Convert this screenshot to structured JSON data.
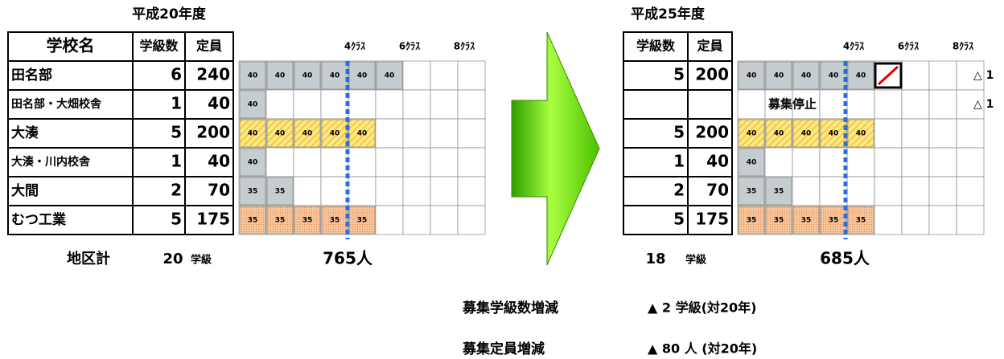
{
  "left": {
    "title": "平成20年度",
    "headers": [
      "学校名",
      "学級数",
      "定員"
    ],
    "class_labels": [
      "4ｸﾗｽ",
      "6ｸﾗｽ",
      "8ｸﾗｽ"
    ],
    "rows": [
      {
        "name": "田名部",
        "classes": 6,
        "capacity": 240,
        "cells": [
          40,
          40,
          40,
          40,
          40,
          40
        ],
        "color": "gray"
      },
      {
        "name": "田名部・大畑校舎",
        "classes": 1,
        "capacity": 40,
        "cells": [
          40
        ],
        "color": "gray"
      },
      {
        "name": "大湊",
        "classes": 5,
        "capacity": 200,
        "cells": [
          40,
          40,
          40,
          40,
          40
        ],
        "color": "yellow"
      },
      {
        "name": "大湊・川内校舎",
        "classes": 1,
        "capacity": 40,
        "cells": [
          40
        ],
        "color": "gray"
      },
      {
        "name": "大間",
        "classes": 2,
        "capacity": 70,
        "cells": [
          35,
          35
        ],
        "color": "gray"
      },
      {
        "name": "むつ工業",
        "classes": 5,
        "capacity": 175,
        "cells": [
          35,
          35,
          35,
          35,
          35
        ],
        "color": "orange"
      }
    ],
    "total": {
      "label": "地区計",
      "classes": 20,
      "unit": "学級",
      "capacity": "765人"
    }
  },
  "right": {
    "title": "平成25年度",
    "headers": [
      "学級数",
      "定員"
    ],
    "class_labels": [
      "4ｸﾗｽ",
      "6ｸﾗｽ",
      "8ｸﾗｽ"
    ],
    "rows": [
      {
        "classes": 5,
        "capacity": 200,
        "cells": [
          40,
          40,
          40,
          40,
          40
        ],
        "color": "gray",
        "note": "△ 1"
      },
      {
        "status": "募集停止",
        "note": "△ 1"
      },
      {
        "classes": 5,
        "capacity": 200,
        "cells": [
          40,
          40,
          40,
          40,
          40
        ],
        "color": "yellow"
      },
      {
        "classes": 1,
        "capacity": 40,
        "cells": [
          40
        ],
        "color": "gray"
      },
      {
        "classes": 2,
        "capacity": 70,
        "cells": [
          35,
          35
        ],
        "color": "gray"
      },
      {
        "classes": 5,
        "capacity": 175,
        "cells": [
          35,
          35,
          35,
          35,
          35
        ],
        "color": "orange"
      }
    ],
    "total": {
      "classes": 18,
      "unit": "学級",
      "capacity": "685人"
    }
  },
  "summary": [
    {
      "label": "募集学級数増減",
      "value": "▲ 2 学級(対20年)"
    },
    {
      "label": "募集定員増減",
      "value": "▲ 80 人 (対20年)"
    }
  ]
}
